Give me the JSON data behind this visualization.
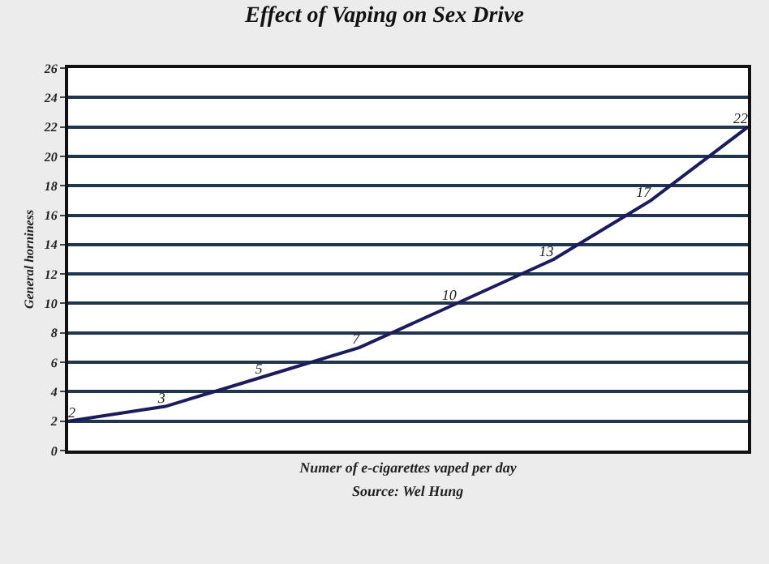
{
  "chart_data": {
    "type": "line",
    "title": "Effect of Vaping on Sex Drive",
    "xlabel": "Numer of e-cigarettes vaped per day",
    "ylabel": "General horniness",
    "annotations": [
      "Source: Wel Hung"
    ],
    "categories": [
      null,
      null,
      null,
      null,
      null,
      null,
      null,
      null
    ],
    "series": [
      {
        "color": "#1c1c5c",
        "values": [
          2,
          3,
          5,
          7,
          10,
          13,
          17,
          22
        ]
      }
    ],
    "ylim": [
      0,
      26
    ],
    "yticks": [
      0,
      2,
      4,
      6,
      8,
      10,
      12,
      14,
      16,
      18,
      20,
      22,
      24,
      26
    ],
    "grid": "y",
    "marker": "none",
    "line_style": "solid",
    "data_labels": true,
    "tick_labels": "y"
  }
}
